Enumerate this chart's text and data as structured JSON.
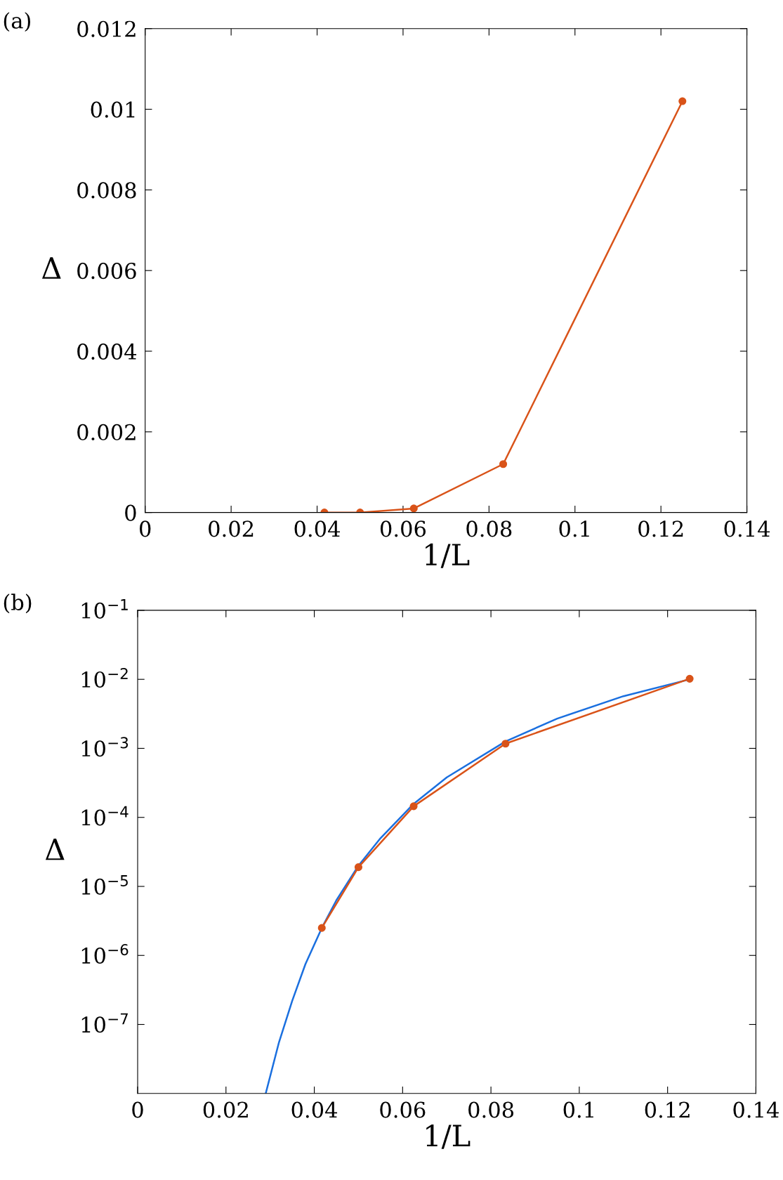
{
  "chart_data": [
    {
      "type": "line",
      "xlabel": "1/L",
      "ylabel": "Δ",
      "annotations": [
        "(a)"
      ],
      "xlim": [
        0,
        0.14
      ],
      "xticks": [
        0,
        0.02,
        0.04,
        0.06,
        0.08,
        0.1,
        0.12,
        0.14
      ],
      "ylim": [
        0,
        0.012
      ],
      "yticks": [
        0,
        0.002,
        0.004,
        0.006,
        0.008,
        0.01,
        0.012
      ],
      "grid": false,
      "legend": false,
      "series": [
        {
          "color": "#d95319",
          "marker": "circle",
          "x": [
            0.0417,
            0.05,
            0.0625,
            0.0833,
            0.125
          ],
          "values": [
            0,
            0,
            0.0001,
            0.0012,
            0.0102
          ]
        }
      ]
    },
    {
      "type": "line",
      "xlabel": "1/L",
      "ylabel": "Δ",
      "annotations": [
        "(b)"
      ],
      "log": "y",
      "xlim": [
        0,
        0.14
      ],
      "xticks": [
        0,
        0.02,
        0.04,
        0.06,
        0.08,
        0.1,
        0.12,
        0.14
      ],
      "ylim": [
        1e-08,
        0.1
      ],
      "yticks": [
        {
          "value": 0.1,
          "label": "10$^{−1}$"
        },
        {
          "value": 0.01,
          "label": "10$^{−2}$"
        },
        {
          "value": 0.001,
          "label": "10$^{−3}$"
        },
        {
          "value": 0.0001,
          "label": "10$^{−4}$"
        },
        {
          "value": 1e-05,
          "label": "10$^{−5}$"
        },
        {
          "value": 1e-06,
          "label": "10$^{−6}$"
        },
        {
          "value": 1e-07,
          "label": "10$^{−7}$"
        }
      ],
      "grid": false,
      "legend": false,
      "series": [
        {
          "color": "#1a6fdf",
          "marker": "none",
          "x": [
            0.029,
            0.032,
            0.035,
            0.038,
            0.0417,
            0.045,
            0.05,
            0.055,
            0.0625,
            0.07,
            0.0833,
            0.095,
            0.11,
            0.125
          ],
          "values": [
            1e-08,
            5.5e-08,
            2.2e-07,
            7.5e-07,
            2.5e-06,
            6.3e-06,
            2e-05,
            5e-05,
            0.000157,
            0.00038,
            0.00126,
            0.0027,
            0.0057,
            0.01
          ]
        },
        {
          "color": "#d95319",
          "marker": "circle",
          "x": [
            0.0417,
            0.05,
            0.0625,
            0.0833,
            0.125
          ],
          "values": [
            2.5e-06,
            1.9e-05,
            0.000145,
            0.00117,
            0.0102
          ]
        }
      ]
    }
  ]
}
